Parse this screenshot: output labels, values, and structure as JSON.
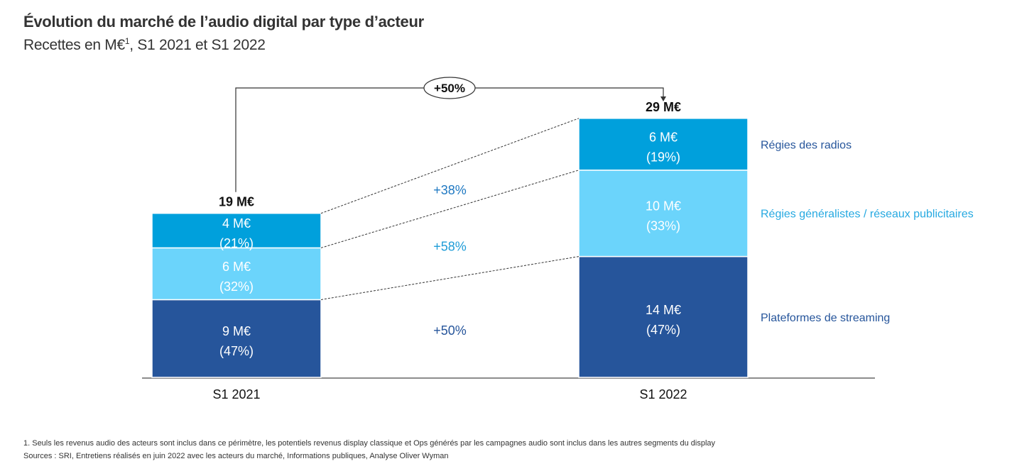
{
  "header": {
    "title": "Évolution du marché de l’audio digital par type d’acteur",
    "subtitle_prefix": "Recettes en M€",
    "subtitle_sup": "1",
    "subtitle_suffix": ", S1 2021 et S1 2022"
  },
  "chart_data": {
    "type": "bar",
    "stacked": true,
    "title": "Évolution du marché de l’audio digital par type d’acteur",
    "subtitle": "Recettes en M€, S1 2021 et S1 2022",
    "unit": "M€",
    "categories": [
      "S1 2021",
      "S1 2022"
    ],
    "totals": [
      19,
      29
    ],
    "total_labels": [
      "19 M€",
      "29 M€"
    ],
    "overall_growth_label": "+50%",
    "series": [
      {
        "name": "Plateformes de streaming",
        "color": "#26559B",
        "legend_color": "#26559B",
        "values": [
          9,
          14
        ],
        "value_labels": [
          "9 M€",
          "14 M€"
        ],
        "share_labels": [
          "(47%)",
          "(47%)"
        ],
        "growth_label": "+50%",
        "growth_color": "#26559B"
      },
      {
        "name": "Régies généralistes / réseaux publicitaires",
        "color": "#6BD4FB",
        "legend_color": "#26A9E1",
        "values": [
          6,
          10
        ],
        "value_labels": [
          "6 M€",
          "10 M€"
        ],
        "share_labels": [
          "(32%)",
          "(33%)"
        ],
        "growth_label": "+58%",
        "growth_color": "#1E9CD7"
      },
      {
        "name": "Régies des radios",
        "color": "#00A0DC",
        "legend_color": "#26559B",
        "values": [
          4,
          6
        ],
        "value_labels": [
          "4 M€",
          "6 M€"
        ],
        "share_labels": [
          "(21%)",
          "(19%)"
        ],
        "growth_label": "+38%",
        "growth_color": "#1E78C2"
      }
    ],
    "xlabel": "",
    "ylabel": "",
    "grid": false,
    "legend": "right"
  },
  "footnotes": [
    "1. Seuls les revenus audio des acteurs sont inclus dans ce périmètre, les potentiels revenus display classique et Ops générés par les campagnes audio sont inclus dans les autres segments du display",
    "Sources : SRI, Entretiens réalisés en juin 2022 avec les acteurs du marché, Informations publiques, Analyse Oliver Wyman"
  ]
}
